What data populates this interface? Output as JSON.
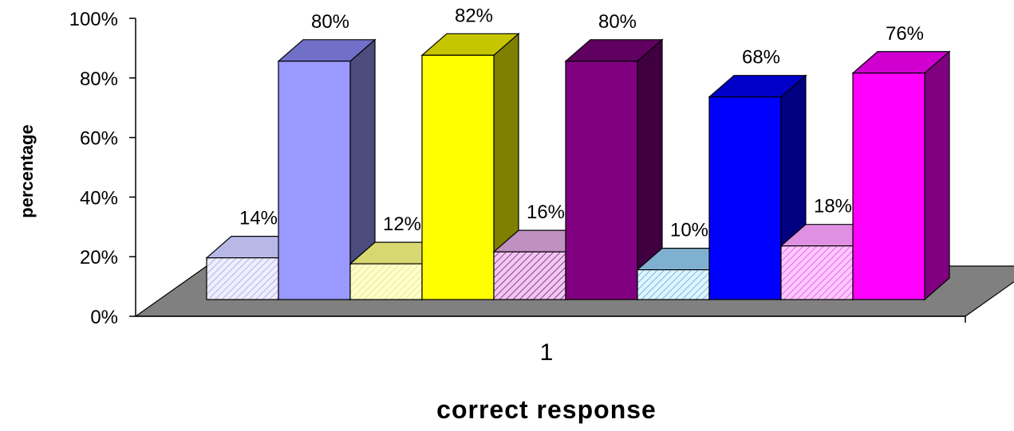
{
  "chart_data": {
    "type": "bar",
    "categories": [
      "1"
    ],
    "series": [
      {
        "values": [
          14
        ],
        "label": "14%",
        "front": "#eeeeff",
        "top": "#b8b8e6",
        "side": "#8c8cc4",
        "pattern": "#9898d8"
      },
      {
        "values": [
          80
        ],
        "label": "80%",
        "front": "#9999ff",
        "top": "#7070c8",
        "side": "#4c4c7e",
        "pattern": null
      },
      {
        "values": [
          12
        ],
        "label": "12%",
        "front": "#ffffcc",
        "top": "#d8d870",
        "side": "#b0b040",
        "pattern": "#e0e070"
      },
      {
        "values": [
          82
        ],
        "label": "82%",
        "front": "#ffff00",
        "top": "#c6c600",
        "side": "#808000",
        "pattern": null
      },
      {
        "values": [
          16
        ],
        "label": "16%",
        "front": "#f0c8f0",
        "top": "#c090c0",
        "side": "#905890",
        "pattern": "#700070"
      },
      {
        "values": [
          80
        ],
        "label": "80%",
        "front": "#800080",
        "top": "#600060",
        "side": "#400040",
        "pattern": null
      },
      {
        "values": [
          10
        ],
        "label": "10%",
        "front": "#e0f4ff",
        "top": "#80b0d0",
        "side": "#5080a0",
        "pattern": "#3aa0e0"
      },
      {
        "values": [
          68
        ],
        "label": "68%",
        "front": "#0000ff",
        "top": "#0000c8",
        "side": "#000080",
        "pattern": null
      },
      {
        "values": [
          18
        ],
        "label": "18%",
        "front": "#ffc8ff",
        "top": "#e090e0",
        "side": "#b060b0",
        "pattern": "#e040e0"
      },
      {
        "values": [
          76
        ],
        "label": "76%",
        "front": "#ff00ff",
        "top": "#d000d0",
        "side": "#800080",
        "pattern": null
      }
    ],
    "yticks": [
      "0%",
      "20%",
      "40%",
      "60%",
      "80%",
      "100%"
    ],
    "ylim": [
      0,
      100
    ],
    "xlabel": "correct response",
    "ylabel": "percentage",
    "floor_color": "#808080",
    "grid": false,
    "three_d": true
  }
}
